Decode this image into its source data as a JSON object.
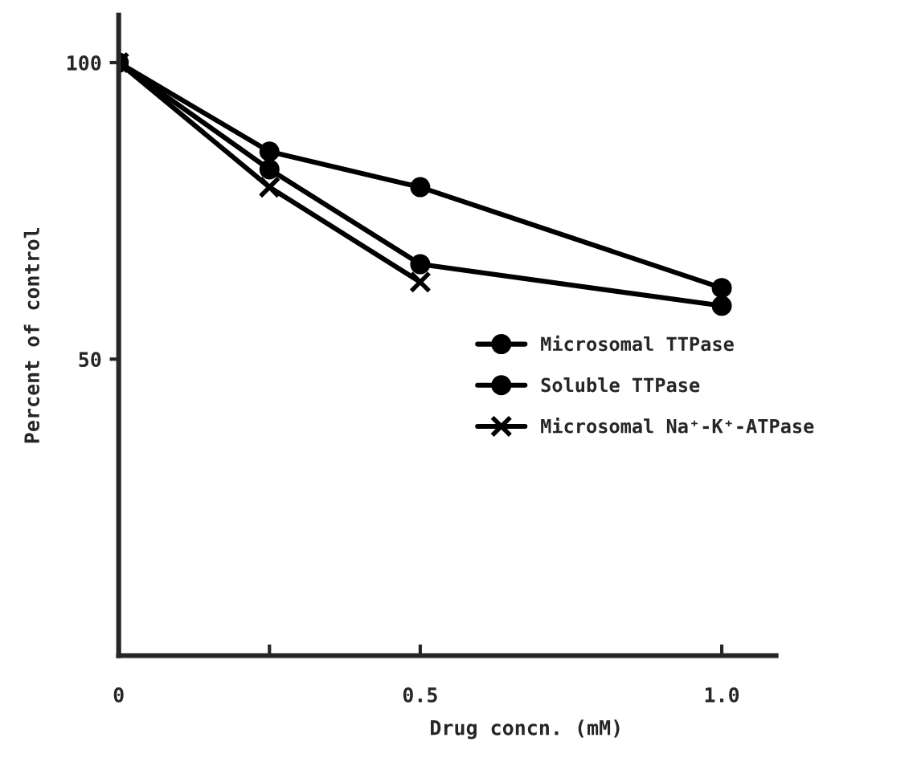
{
  "chart_data": {
    "type": "line",
    "xlabel": "Drug concn. (mM)",
    "ylabel": "Percent of control",
    "x": [
      0,
      0.25,
      0.5,
      1.0
    ],
    "series": [
      {
        "name": "Microsomal TTPase",
        "color": "#000000",
        "marker": "circle",
        "values": [
          100,
          85,
          79,
          62
        ]
      },
      {
        "name": "Soluble TTPase",
        "color": "#000000",
        "marker": "circle",
        "values": [
          100,
          82,
          66,
          59
        ]
      },
      {
        "name": "Microsomal Na⁺-K⁺-ATPase",
        "color": "#000000",
        "marker": "cross",
        "values": [
          100,
          79,
          63,
          null
        ]
      }
    ],
    "xlim": [
      0,
      1.09
    ],
    "ylim": [
      0,
      108
    ],
    "xticks": [
      0,
      {
        "value": 0.25,
        "label": null
      },
      0.5,
      {
        "value": 1.0,
        "label": "1.0"
      }
    ],
    "yticks": [
      50,
      100
    ],
    "legend": "right",
    "grid": false,
    "line_style": "solid"
  }
}
